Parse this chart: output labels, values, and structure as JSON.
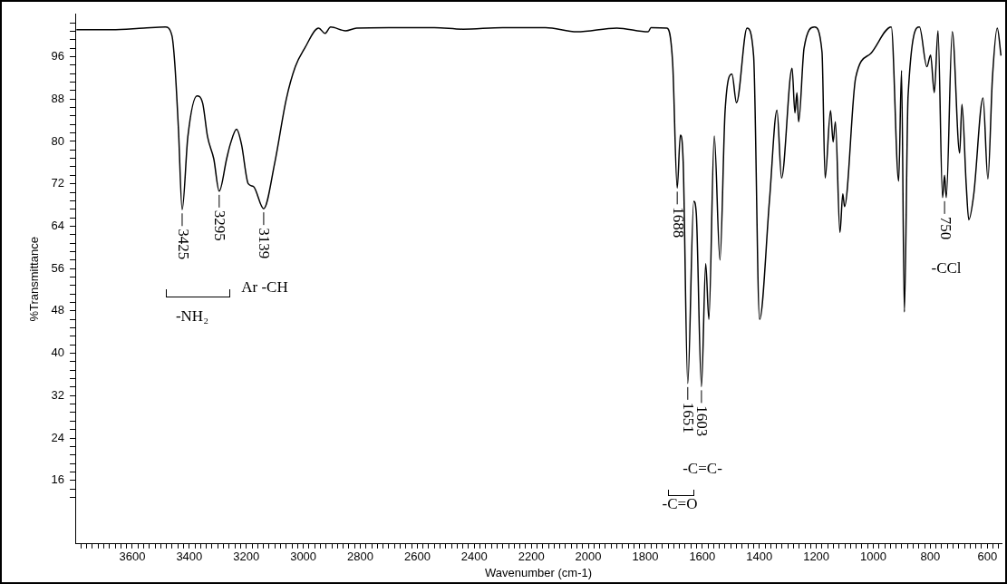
{
  "chart_data": {
    "type": "line",
    "xlabel": "Wavenumber (cm-1)",
    "ylabel": "%Transmittance",
    "xlim": [
      3800,
      550
    ],
    "ylim": [
      4,
      104
    ],
    "xticks": [
      3600,
      3400,
      3200,
      3000,
      2800,
      2600,
      2400,
      2200,
      2000,
      1800,
      1600,
      1400,
      1200,
      1000,
      800,
      600,
      {
        "value": 3780,
        "label": null
      },
      {
        "value": 3760,
        "label": null
      },
      {
        "value": 3740,
        "label": null
      },
      {
        "value": 3720,
        "label": null
      },
      {
        "value": 3700,
        "label": null
      },
      {
        "value": 3680,
        "label": null
      },
      {
        "value": 3660,
        "label": null
      },
      {
        "value": 3640,
        "label": null
      },
      {
        "value": 3620,
        "label": null
      },
      {
        "value": 3580,
        "label": null
      },
      {
        "value": 3560,
        "label": null
      },
      {
        "value": 3540,
        "label": null
      },
      {
        "value": 3520,
        "label": null
      },
      {
        "value": 3500,
        "label": null
      },
      {
        "value": 3480,
        "label": null
      },
      {
        "value": 3460,
        "label": null
      },
      {
        "value": 3440,
        "label": null
      },
      {
        "value": 3420,
        "label": null
      },
      {
        "value": 3380,
        "label": null
      },
      {
        "value": 3360,
        "label": null
      },
      {
        "value": 3340,
        "label": null
      },
      {
        "value": 3320,
        "label": null
      },
      {
        "value": 3300,
        "label": null
      },
      {
        "value": 3280,
        "label": null
      },
      {
        "value": 3260,
        "label": null
      },
      {
        "value": 3240,
        "label": null
      },
      {
        "value": 3220,
        "label": null
      },
      {
        "value": 3180,
        "label": null
      },
      {
        "value": 3160,
        "label": null
      },
      {
        "value": 3140,
        "label": null
      },
      {
        "value": 3120,
        "label": null
      },
      {
        "value": 3100,
        "label": null
      },
      {
        "value": 3080,
        "label": null
      },
      {
        "value": 3060,
        "label": null
      },
      {
        "value": 3040,
        "label": null
      },
      {
        "value": 3020,
        "label": null
      },
      {
        "value": 2980,
        "label": null
      },
      {
        "value": 2960,
        "label": null
      },
      {
        "value": 2940,
        "label": null
      },
      {
        "value": 2920,
        "label": null
      },
      {
        "value": 2900,
        "label": null
      },
      {
        "value": 2880,
        "label": null
      },
      {
        "value": 2860,
        "label": null
      },
      {
        "value": 2840,
        "label": null
      },
      {
        "value": 2820,
        "label": null
      },
      {
        "value": 2780,
        "label": null
      },
      {
        "value": 2760,
        "label": null
      },
      {
        "value": 2740,
        "label": null
      },
      {
        "value": 2720,
        "label": null
      },
      {
        "value": 2700,
        "label": null
      },
      {
        "value": 2680,
        "label": null
      },
      {
        "value": 2660,
        "label": null
      },
      {
        "value": 2640,
        "label": null
      },
      {
        "value": 2620,
        "label": null
      },
      {
        "value": 2580,
        "label": null
      },
      {
        "value": 2560,
        "label": null
      },
      {
        "value": 2540,
        "label": null
      },
      {
        "value": 2520,
        "label": null
      },
      {
        "value": 2500,
        "label": null
      },
      {
        "value": 2480,
        "label": null
      },
      {
        "value": 2460,
        "label": null
      },
      {
        "value": 2440,
        "label": null
      },
      {
        "value": 2420,
        "label": null
      },
      {
        "value": 2380,
        "label": null
      },
      {
        "value": 2360,
        "label": null
      },
      {
        "value": 2340,
        "label": null
      },
      {
        "value": 2320,
        "label": null
      },
      {
        "value": 2300,
        "label": null
      },
      {
        "value": 2280,
        "label": null
      },
      {
        "value": 2260,
        "label": null
      },
      {
        "value": 2240,
        "label": null
      },
      {
        "value": 2220,
        "label": null
      },
      {
        "value": 2180,
        "label": null
      },
      {
        "value": 2160,
        "label": null
      },
      {
        "value": 2140,
        "label": null
      },
      {
        "value": 2120,
        "label": null
      },
      {
        "value": 2100,
        "label": null
      },
      {
        "value": 2080,
        "label": null
      },
      {
        "value": 2060,
        "label": null
      },
      {
        "value": 2040,
        "label": null
      },
      {
        "value": 2020,
        "label": null
      },
      {
        "value": 1980,
        "label": null
      },
      {
        "value": 1960,
        "label": null
      },
      {
        "value": 1940,
        "label": null
      },
      {
        "value": 1920,
        "label": null
      },
      {
        "value": 1900,
        "label": null
      },
      {
        "value": 1880,
        "label": null
      },
      {
        "value": 1860,
        "label": null
      },
      {
        "value": 1840,
        "label": null
      },
      {
        "value": 1820,
        "label": null
      },
      {
        "value": 1780,
        "label": null
      },
      {
        "value": 1760,
        "label": null
      },
      {
        "value": 1740,
        "label": null
      },
      {
        "value": 1720,
        "label": null
      },
      {
        "value": 1700,
        "label": null
      },
      {
        "value": 1680,
        "label": null
      },
      {
        "value": 1660,
        "label": null
      },
      {
        "value": 1640,
        "label": null
      },
      {
        "value": 1620,
        "label": null
      },
      {
        "value": 1580,
        "label": null
      },
      {
        "value": 1560,
        "label": null
      },
      {
        "value": 1540,
        "label": null
      },
      {
        "value": 1520,
        "label": null
      },
      {
        "value": 1500,
        "label": null
      },
      {
        "value": 1480,
        "label": null
      },
      {
        "value": 1460,
        "label": null
      },
      {
        "value": 1440,
        "label": null
      },
      {
        "value": 1420,
        "label": null
      },
      {
        "value": 1380,
        "label": null
      },
      {
        "value": 1360,
        "label": null
      },
      {
        "value": 1340,
        "label": null
      },
      {
        "value": 1320,
        "label": null
      },
      {
        "value": 1300,
        "label": null
      },
      {
        "value": 1280,
        "label": null
      },
      {
        "value": 1260,
        "label": null
      },
      {
        "value": 1240,
        "label": null
      },
      {
        "value": 1220,
        "label": null
      },
      {
        "value": 1180,
        "label": null
      },
      {
        "value": 1160,
        "label": null
      },
      {
        "value": 1140,
        "label": null
      },
      {
        "value": 1120,
        "label": null
      },
      {
        "value": 1100,
        "label": null
      },
      {
        "value": 1080,
        "label": null
      },
      {
        "value": 1060,
        "label": null
      },
      {
        "value": 1040,
        "label": null
      },
      {
        "value": 1020,
        "label": null
      },
      {
        "value": 980,
        "label": null
      },
      {
        "value": 960,
        "label": null
      },
      {
        "value": 940,
        "label": null
      },
      {
        "value": 920,
        "label": null
      },
      {
        "value": 900,
        "label": null
      },
      {
        "value": 880,
        "label": null
      },
      {
        "value": 860,
        "label": null
      },
      {
        "value": 840,
        "label": null
      },
      {
        "value": 820,
        "label": null
      },
      {
        "value": 780,
        "label": null
      },
      {
        "value": 760,
        "label": null
      },
      {
        "value": 740,
        "label": null
      },
      {
        "value": 720,
        "label": null
      },
      {
        "value": 700,
        "label": null
      },
      {
        "value": 680,
        "label": null
      },
      {
        "value": 660,
        "label": null
      },
      {
        "value": 640,
        "label": null
      },
      {
        "value": 620,
        "label": null
      },
      {
        "value": 580,
        "label": null
      },
      {
        "value": 560,
        "label": null
      }
    ],
    "yticks": [
      16,
      24,
      32,
      40,
      48,
      56,
      64,
      72,
      80,
      88,
      96,
      {
        "value": 12.8,
        "label": null
      },
      {
        "value": 14.4,
        "label": null
      },
      {
        "value": 17.6,
        "label": null
      },
      {
        "value": 19.2,
        "label": null
      },
      {
        "value": 20.8,
        "label": null
      },
      {
        "value": 22.4,
        "label": null
      },
      {
        "value": 25.6,
        "label": null
      },
      {
        "value": 27.2,
        "label": null
      },
      {
        "value": 28.8,
        "label": null
      },
      {
        "value": 30.4,
        "label": null
      },
      {
        "value": 33.6,
        "label": null
      },
      {
        "value": 35.2,
        "label": null
      },
      {
        "value": 36.8,
        "label": null
      },
      {
        "value": 38.4,
        "label": null
      },
      {
        "value": 41.6,
        "label": null
      },
      {
        "value": 43.2,
        "label": null
      },
      {
        "value": 44.8,
        "label": null
      },
      {
        "value": 46.4,
        "label": null
      },
      {
        "value": 49.6,
        "label": null
      },
      {
        "value": 51.2,
        "label": null
      },
      {
        "value": 52.8,
        "label": null
      },
      {
        "value": 54.4,
        "label": null
      },
      {
        "value": 57.6,
        "label": null
      },
      {
        "value": 59.2,
        "label": null
      },
      {
        "value": 60.8,
        "label": null
      },
      {
        "value": 62.4,
        "label": null
      },
      {
        "value": 65.6,
        "label": null
      },
      {
        "value": 67.2,
        "label": null
      },
      {
        "value": 68.8,
        "label": null
      },
      {
        "value": 70.4,
        "label": null
      },
      {
        "value": 73.6,
        "label": null
      },
      {
        "value": 75.2,
        "label": null
      },
      {
        "value": 76.8,
        "label": null
      },
      {
        "value": 78.4,
        "label": null
      },
      {
        "value": 81.6,
        "label": null
      },
      {
        "value": 83.2,
        "label": null
      },
      {
        "value": 84.8,
        "label": null
      },
      {
        "value": 86.4,
        "label": null
      },
      {
        "value": 89.6,
        "label": null
      },
      {
        "value": 91.2,
        "label": null
      },
      {
        "value": 92.8,
        "label": null
      },
      {
        "value": 94.4,
        "label": null
      },
      {
        "value": 97.6,
        "label": null
      },
      {
        "value": 99.2,
        "label": null
      },
      {
        "value": 100.8,
        "label": null
      },
      {
        "value": 102.4,
        "label": null
      }
    ],
    "legend": false,
    "marker": "none",
    "line_style": "solid",
    "annotations": [
      "-NH₂",
      "Ar -CH",
      "-C=C-",
      "-C=O",
      "-CCl",
      {
        "text": "3425",
        "x": 3425,
        "y": 67.1
      },
      {
        "text": "3295",
        "x": 3295,
        "y": 70.6
      },
      {
        "text": "3139",
        "x": 3139,
        "y": 67.3
      },
      {
        "text": "1688",
        "x": 1688,
        "y": 71.2
      },
      {
        "text": "1651",
        "x": 1651,
        "y": 34.3
      },
      {
        "text": "1603",
        "x": 1603,
        "y": 33.7
      },
      {
        "text": "750",
        "x": 750,
        "y": 73.6
      }
    ],
    "series": [
      {
        "color": "#000000",
        "x": [
          3796,
          3672,
          3560,
          3484,
          3461,
          3451,
          3438,
          3425,
          3405,
          3373,
          3353,
          3336,
          3314,
          3295,
          3269,
          3256,
          3234,
          3217,
          3193,
          3175,
          3139,
          3100,
          3060,
          3028,
          2995,
          2946,
          2924,
          2904,
          2852,
          2813,
          2700,
          2540,
          2440,
          2300,
          2150,
          2040,
          1900,
          1790,
          1780,
          1724,
          1704,
          1688,
          1677,
          1667,
          1651,
          1630,
          1621,
          1603,
          1588,
          1577,
          1558,
          1538,
          1520,
          1496,
          1480,
          1443,
          1420,
          1399,
          1364,
          1338,
          1322,
          1285,
          1275,
          1268,
          1262,
          1243,
          1206,
          1180,
          1169,
          1150,
          1141,
          1133,
          1117,
          1107,
          1101,
          1062,
          1009,
          937,
          911,
          901,
          891,
          878,
          838,
          812,
          799,
          786,
          773,
          757,
          750,
          744,
          723,
          697,
          689,
          674,
          665,
          648,
          615,
          598,
          582,
          565,
          552
        ],
        "values": [
          101.1,
          101.1,
          101.4,
          101.6,
          100,
          94.8,
          82.3,
          67.1,
          80.9,
          88.6,
          87.2,
          80.9,
          76.7,
          70.6,
          76.7,
          79.5,
          82.3,
          79.5,
          72,
          71.5,
          67.3,
          76,
          87.9,
          94.1,
          97.6,
          101.4,
          100.4,
          101.6,
          100.9,
          101.4,
          101.5,
          101.5,
          101.2,
          101.5,
          101.5,
          100.7,
          101.4,
          100.7,
          101.5,
          101.4,
          94.8,
          71.2,
          81.2,
          76,
          34.3,
          68.7,
          66.3,
          33.7,
          56.9,
          46.4,
          81,
          57.6,
          85.8,
          92.7,
          87.3,
          101.4,
          96.2,
          46.4,
          69.1,
          85.9,
          73.1,
          93.8,
          85.4,
          89.2,
          83.7,
          97.6,
          101.6,
          96.9,
          73.1,
          85.8,
          79.9,
          83.7,
          62.8,
          70.1,
          67.7,
          92,
          96.6,
          101.6,
          72.5,
          93.4,
          47.8,
          88.6,
          101.6,
          94.1,
          96.3,
          89.2,
          100.9,
          69.4,
          73.6,
          69.4,
          100.7,
          77.8,
          87,
          71.8,
          65.2,
          69.8,
          88.2,
          72.9,
          92,
          101.4,
          96.2
        ]
      }
    ]
  }
}
